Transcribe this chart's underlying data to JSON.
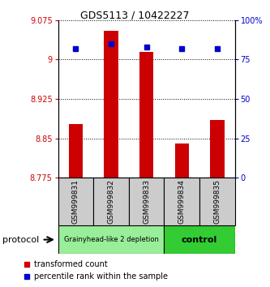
{
  "title": "GDS5113 / 10422227",
  "samples": [
    "GSM999831",
    "GSM999832",
    "GSM999833",
    "GSM999834",
    "GSM999835"
  ],
  "red_values": [
    8.878,
    9.055,
    9.015,
    8.84,
    8.885
  ],
  "blue_values": [
    82,
    85,
    83,
    82,
    82
  ],
  "ylim_left": [
    8.775,
    9.075
  ],
  "ylim_right": [
    0,
    100
  ],
  "yticks_left": [
    8.775,
    8.85,
    8.925,
    9.0,
    9.075
  ],
  "ytick_labels_left": [
    "8.775",
    "8.85",
    "8.925",
    "9",
    "9.075"
  ],
  "yticks_right": [
    0,
    25,
    50,
    75,
    100
  ],
  "ytick_labels_right": [
    "0",
    "25",
    "50",
    "75",
    "100%"
  ],
  "groups": [
    {
      "label": "Grainyhead-like 2 depletion",
      "n_samples": 3,
      "color": "#99ee99"
    },
    {
      "label": "control",
      "n_samples": 2,
      "color": "#33cc33"
    }
  ],
  "protocol_label": "protocol",
  "legend_red": "transformed count",
  "legend_blue": "percentile rank within the sample",
  "red_color": "#cc0000",
  "blue_color": "#0000cc",
  "bar_bottom": 8.775,
  "bar_width": 0.4,
  "bg_color": "#ffffff",
  "grid_color": "black",
  "grid_linestyle": ":",
  "grid_linewidth": 0.7
}
